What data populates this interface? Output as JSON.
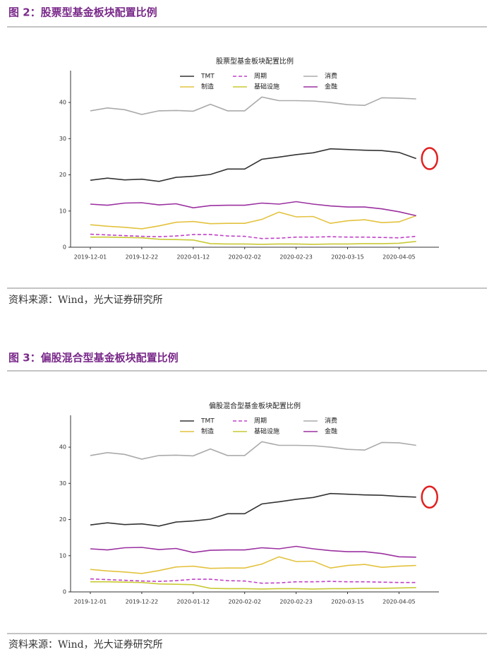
{
  "figures": [
    {
      "caption": "图 2：股票型基金板块配置比例",
      "source": "资料来源：Wind，光大证券研究所"
    },
    {
      "caption": "图 3：偏股混合型基金板块配置比例",
      "source": "资料来源：Wind，光大证券研究所"
    }
  ],
  "chart_data": [
    {
      "type": "line",
      "title": "股票型基金板块配置比例",
      "categories": [
        "2019-12-01",
        null,
        null,
        "2019-12-22",
        null,
        null,
        "2020-01-12",
        null,
        null,
        "2020-02-02",
        null,
        null,
        "2020-02-23",
        null,
        null,
        "2020-03-15",
        null,
        null,
        "2020-04-05",
        null
      ],
      "ylim": [
        0,
        48.8
      ],
      "yticks": [
        0,
        10,
        20,
        30,
        40
      ],
      "legend": "upper center",
      "grid": false,
      "series": [
        {
          "name": "TMT",
          "color": "#333333",
          "dash": false,
          "values": [
            18.5,
            19.1,
            18.6,
            18.8,
            18.2,
            19.3,
            19.6,
            20.1,
            21.6,
            21.6,
            24.3,
            24.9,
            25.6,
            26.1,
            27.2,
            27.0,
            26.8,
            26.7,
            26.2,
            24.5
          ]
        },
        {
          "name": "周期",
          "color": "#c040c8",
          "dash": true,
          "values": [
            3.6,
            3.4,
            3.2,
            3.0,
            2.9,
            3.1,
            3.5,
            3.5,
            3.1,
            3.0,
            2.4,
            2.5,
            2.8,
            2.8,
            2.9,
            2.8,
            2.8,
            2.7,
            2.6,
            3.0
          ]
        },
        {
          "name": "消费",
          "color": "#aaaaaa",
          "dash": false,
          "values": [
            37.7,
            38.5,
            38.0,
            36.7,
            37.7,
            37.8,
            37.6,
            39.5,
            37.7,
            37.7,
            41.5,
            40.5,
            40.5,
            40.4,
            40.0,
            39.4,
            39.2,
            41.3,
            41.2,
            41.0
          ]
        },
        {
          "name": "制造",
          "color": "#e3c23e",
          "dash": false,
          "values": [
            6.2,
            5.8,
            5.5,
            5.1,
            5.9,
            6.9,
            7.1,
            6.5,
            6.6,
            6.6,
            7.7,
            9.7,
            8.4,
            8.5,
            6.6,
            7.3,
            7.6,
            6.8,
            7.0,
            8.7
          ]
        },
        {
          "name": "基础设施",
          "color": "#c9c934",
          "dash": false,
          "values": [
            2.8,
            2.8,
            2.7,
            2.6,
            2.2,
            2.1,
            2.0,
            1.0,
            0.9,
            0.9,
            0.8,
            0.9,
            0.9,
            0.8,
            0.9,
            0.9,
            1.0,
            1.0,
            1.1,
            1.6
          ]
        },
        {
          "name": "金融",
          "color": "#9b30a0",
          "dash": false,
          "values": [
            11.9,
            11.6,
            12.2,
            12.3,
            11.7,
            12.0,
            10.9,
            11.5,
            11.6,
            11.6,
            12.2,
            11.9,
            12.6,
            11.9,
            11.4,
            11.1,
            11.1,
            10.6,
            9.8,
            8.7
          ]
        }
      ]
    },
    {
      "type": "line",
      "title": "偏股混合型基金板块配置比例",
      "categories": [
        "2019-12-01",
        null,
        null,
        "2019-12-22",
        null,
        null,
        "2020-01-12",
        null,
        null,
        "2020-02-02",
        null,
        null,
        "2020-02-23",
        null,
        null,
        "2020-03-15",
        null,
        null,
        "2020-04-05",
        null
      ],
      "ylim": [
        0,
        48.8
      ],
      "yticks": [
        0,
        10,
        20,
        30,
        40
      ],
      "legend": "upper center",
      "grid": false,
      "series": [
        {
          "name": "TMT",
          "color": "#333333",
          "dash": false,
          "values": [
            18.5,
            19.1,
            18.6,
            18.8,
            18.2,
            19.3,
            19.6,
            20.1,
            21.6,
            21.6,
            24.3,
            24.9,
            25.6,
            26.1,
            27.2,
            27.0,
            26.8,
            26.7,
            26.4,
            26.2
          ]
        },
        {
          "name": "周期",
          "color": "#c040c8",
          "dash": true,
          "values": [
            3.6,
            3.4,
            3.2,
            3.0,
            2.9,
            3.1,
            3.5,
            3.5,
            3.1,
            3.0,
            2.4,
            2.5,
            2.8,
            2.8,
            2.9,
            2.8,
            2.8,
            2.7,
            2.6,
            2.6
          ]
        },
        {
          "name": "消费",
          "color": "#aaaaaa",
          "dash": false,
          "values": [
            37.7,
            38.5,
            38.0,
            36.7,
            37.7,
            37.8,
            37.6,
            39.5,
            37.7,
            37.7,
            41.5,
            40.5,
            40.5,
            40.4,
            40.0,
            39.4,
            39.2,
            41.3,
            41.2,
            40.5
          ]
        },
        {
          "name": "制造",
          "color": "#e3c23e",
          "dash": false,
          "values": [
            6.2,
            5.8,
            5.5,
            5.1,
            5.9,
            6.9,
            7.1,
            6.5,
            6.6,
            6.6,
            7.7,
            9.7,
            8.4,
            8.5,
            6.6,
            7.3,
            7.6,
            6.8,
            7.1,
            7.3
          ]
        },
        {
          "name": "基础设施",
          "color": "#c9c934",
          "dash": false,
          "values": [
            2.8,
            2.8,
            2.7,
            2.6,
            2.2,
            2.1,
            2.0,
            1.0,
            0.9,
            0.9,
            0.8,
            0.9,
            0.9,
            0.8,
            0.9,
            0.9,
            1.0,
            1.0,
            1.1,
            1.2
          ]
        },
        {
          "name": "金融",
          "color": "#9b30a0",
          "dash": false,
          "values": [
            11.9,
            11.6,
            12.2,
            12.3,
            11.7,
            12.0,
            10.9,
            11.5,
            11.6,
            11.6,
            12.2,
            11.9,
            12.6,
            11.9,
            11.4,
            11.1,
            11.1,
            10.6,
            9.7,
            9.6
          ]
        }
      ]
    }
  ]
}
